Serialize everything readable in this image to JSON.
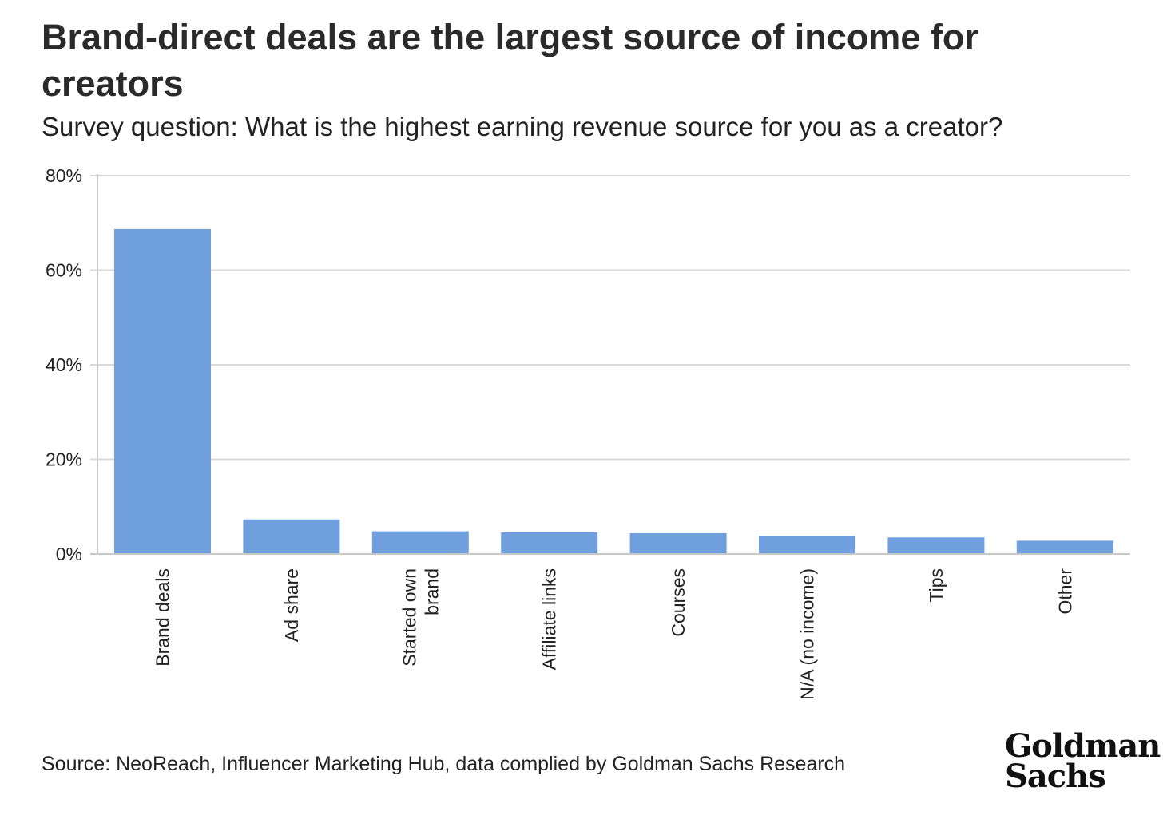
{
  "chart_data": {
    "type": "bar",
    "title": "Brand-direct deals are the largest source of income for creators",
    "subtitle": "Survey question: What is the highest earning revenue source for you as a creator?",
    "categories": [
      "Brand deals",
      "Ad share",
      "Started own brand",
      "Affiliate links",
      "Courses",
      "N/A (no income)",
      "Tips",
      "Other"
    ],
    "category_lines": [
      [
        "Brand deals"
      ],
      [
        "Ad share"
      ],
      [
        "Started own",
        "brand"
      ],
      [
        "Affiliate links"
      ],
      [
        "Courses"
      ],
      [
        "N/A (no income)"
      ],
      [
        "Tips"
      ],
      [
        "Other"
      ]
    ],
    "values": [
      68.7,
      7.3,
      4.8,
      4.6,
      4.4,
      3.8,
      3.5,
      2.8
    ],
    "ylim": [
      0,
      80
    ],
    "yticks": [
      0,
      20,
      40,
      60,
      80
    ],
    "ytick_labels": [
      "0%",
      "20%",
      "40%",
      "60%",
      "80%"
    ],
    "xlabel": "",
    "ylabel": "",
    "grid": true,
    "bar_color": "#6f9fdc",
    "grid_color": "#d9d9d9",
    "axis_color": "#c8c8c8"
  },
  "source_text": "Source: NeoReach, Influencer Marketing Hub, data complied by Goldman Sachs Research",
  "logo": {
    "line1": "Goldman",
    "line2": "Sachs"
  }
}
